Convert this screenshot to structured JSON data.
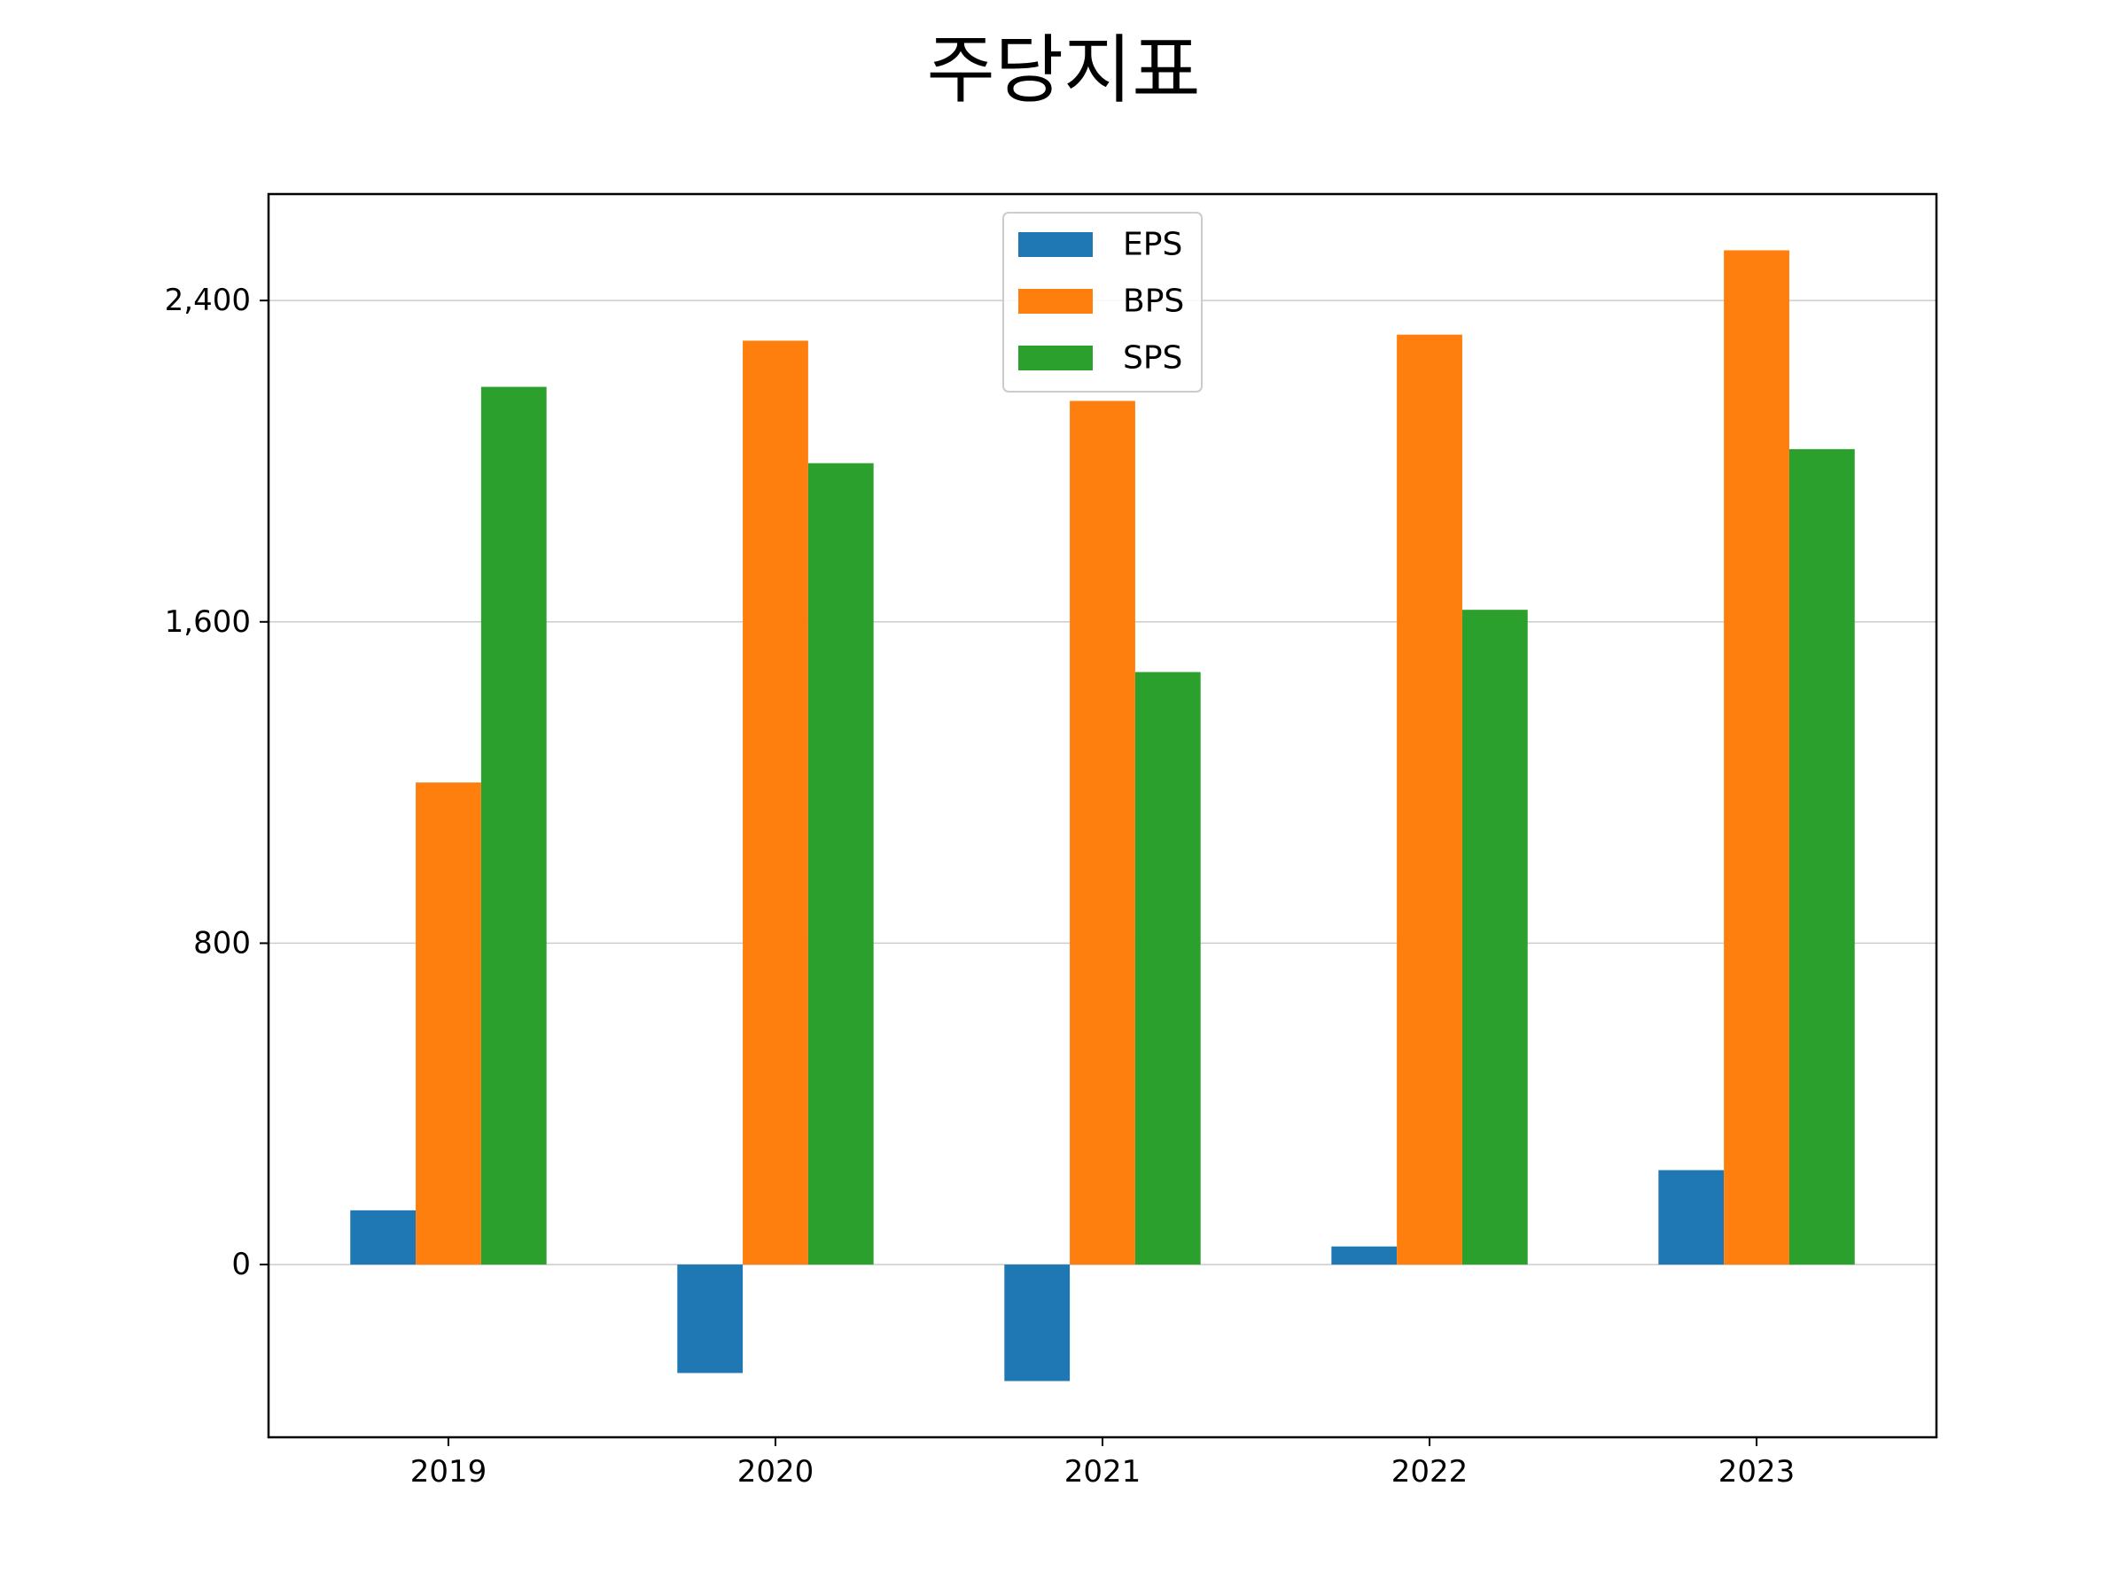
{
  "chart_data": {
    "type": "bar",
    "title": "주당지표",
    "xlabel": "",
    "ylabel": "",
    "categories": [
      "2019",
      "2020",
      "2021",
      "2022",
      "2023"
    ],
    "series": [
      {
        "name": "EPS",
        "color": "#1f77b4",
        "values": [
          135,
          -270,
          -290,
          45,
          235
        ]
      },
      {
        "name": "BPS",
        "color": "#ff7f0e",
        "values": [
          1200,
          2300,
          2150,
          2315,
          2525
        ]
      },
      {
        "name": "SPS",
        "color": "#2ca02c",
        "values": [
          2185,
          1995,
          1475,
          1630,
          2030
        ]
      }
    ],
    "ylim": [
      -430,
      2665
    ],
    "yticks": [
      0,
      800,
      1600,
      2400
    ],
    "ytick_labels": [
      "0",
      "800",
      "1,600",
      "2,400"
    ],
    "grid": "horizontal",
    "legend_position": "top-center"
  }
}
